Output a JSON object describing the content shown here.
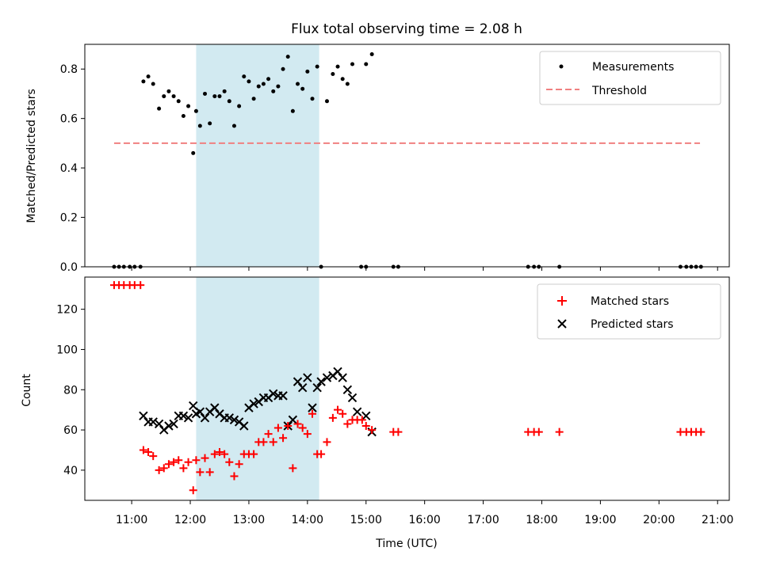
{
  "title": "Flux total observing time = 2.08 h",
  "colors": {
    "measurement": "#000000",
    "threshold": "#f08080",
    "matched": "#ff0000",
    "predicted": "#000000",
    "span": "#add8e6"
  },
  "chart_data": [
    {
      "type": "scatter",
      "ylabel": "Matched/Predicted stars",
      "ylim": [
        0,
        0.9
      ],
      "yticks": [
        0.0,
        0.2,
        0.4,
        0.6,
        0.8
      ],
      "ytick_labels": [
        "0.0",
        "0.2",
        "0.4",
        "0.6",
        "0.8"
      ],
      "xlim": [
        "10:12",
        "21:12"
      ],
      "shaded_span": [
        "12:06",
        "14:12"
      ],
      "legend": {
        "placement": "top-right",
        "entries": [
          "Measurements",
          "Threshold"
        ]
      },
      "threshold": {
        "name": "Threshold",
        "x": [
          "10:42",
          "20:42"
        ],
        "y": 0.5
      },
      "series": [
        {
          "name": "Measurements",
          "x": [
            "10:42",
            "10:47",
            "10:52",
            "10:58",
            "11:03",
            "11:09",
            "11:12",
            "11:17",
            "11:22",
            "11:28",
            "11:33",
            "11:38",
            "11:43",
            "11:48",
            "11:53",
            "11:58",
            "12:03",
            "12:06",
            "12:10",
            "12:15",
            "12:20",
            "12:25",
            "12:30",
            "12:35",
            "12:40",
            "12:45",
            "12:50",
            "12:55",
            "13:00",
            "13:05",
            "13:10",
            "13:15",
            "13:20",
            "13:25",
            "13:30",
            "13:35",
            "13:40",
            "13:45",
            "13:50",
            "13:55",
            "14:00",
            "14:05",
            "14:10",
            "14:14",
            "14:20",
            "14:26",
            "14:31",
            "14:36",
            "14:41",
            "14:46",
            "15:00",
            "15:06",
            "14:55",
            "15:00",
            "15:28",
            "15:33",
            "17:46",
            "17:52",
            "17:57",
            "18:18",
            "20:22",
            "20:28",
            "20:33",
            "20:38",
            "20:43"
          ],
          "y": [
            0,
            0,
            0,
            0,
            0,
            0,
            0.75,
            0.77,
            0.74,
            0.64,
            0.69,
            0.71,
            0.69,
            0.67,
            0.61,
            0.65,
            0.46,
            0.63,
            0.57,
            0.7,
            0.58,
            0.69,
            0.69,
            0.71,
            0.67,
            0.57,
            0.65,
            0.77,
            0.75,
            0.68,
            0.73,
            0.74,
            0.76,
            0.71,
            0.73,
            0.8,
            0.85,
            0.63,
            0.74,
            0.72,
            0.79,
            0.68,
            0.81,
            0,
            0.67,
            0.78,
            0.81,
            0.76,
            0.74,
            0.82,
            0.82,
            0.86,
            0,
            0,
            0,
            0,
            0,
            0,
            0,
            0,
            0,
            0,
            0,
            0,
            0
          ]
        }
      ]
    },
    {
      "type": "scatter",
      "xlabel": "Time (UTC)",
      "ylabel": "Count",
      "ylim": [
        25,
        136
      ],
      "yticks": [
        40,
        60,
        80,
        100,
        120
      ],
      "ytick_labels": [
        "40",
        "60",
        "80",
        "100",
        "120"
      ],
      "xlim": [
        "10:12",
        "21:12"
      ],
      "xticks": [
        "11:00",
        "12:00",
        "13:00",
        "14:00",
        "15:00",
        "16:00",
        "17:00",
        "18:00",
        "19:00",
        "20:00",
        "21:00"
      ],
      "shaded_span": [
        "12:06",
        "14:12"
      ],
      "legend": {
        "placement": "top-right",
        "entries": [
          "Matched stars",
          "Predicted stars"
        ]
      },
      "series": [
        {
          "name": "Matched stars",
          "x": [
            "10:42",
            "10:47",
            "10:52",
            "10:58",
            "11:03",
            "11:09",
            "11:12",
            "11:17",
            "11:22",
            "11:28",
            "11:33",
            "11:38",
            "11:43",
            "11:48",
            "11:53",
            "11:58",
            "12:03",
            "12:06",
            "12:10",
            "12:15",
            "12:20",
            "12:25",
            "12:30",
            "12:35",
            "12:40",
            "12:45",
            "12:50",
            "12:55",
            "13:00",
            "13:05",
            "13:10",
            "13:15",
            "13:20",
            "13:25",
            "13:30",
            "13:35",
            "13:40",
            "13:45",
            "13:50",
            "13:55",
            "14:00",
            "14:05",
            "14:10",
            "14:14",
            "14:20",
            "14:26",
            "14:31",
            "14:36",
            "14:41",
            "14:46",
            "14:51",
            "14:56",
            "15:00",
            "15:06",
            "15:28",
            "15:33",
            "17:46",
            "17:52",
            "17:57",
            "18:18",
            "20:22",
            "20:28",
            "20:33",
            "20:38",
            "20:43"
          ],
          "y": [
            132,
            132,
            132,
            132,
            132,
            132,
            50,
            49,
            47,
            40,
            41,
            43,
            44,
            45,
            41,
            44,
            30,
            45,
            39,
            46,
            39,
            48,
            49,
            48,
            44,
            37,
            43,
            48,
            48,
            48,
            54,
            54,
            58,
            54,
            61,
            56,
            62,
            41,
            63,
            61,
            58,
            68,
            48,
            48,
            54,
            66,
            70,
            68,
            63,
            65,
            65,
            65,
            62,
            60,
            59,
            59,
            59,
            59,
            59,
            59,
            59,
            59,
            59,
            59,
            59
          ]
        },
        {
          "name": "Predicted stars",
          "x": [
            "11:12",
            "11:17",
            "11:22",
            "11:28",
            "11:33",
            "11:38",
            "11:43",
            "11:48",
            "11:53",
            "11:58",
            "12:03",
            "12:06",
            "12:10",
            "12:15",
            "12:20",
            "12:25",
            "12:30",
            "12:35",
            "12:40",
            "12:45",
            "12:50",
            "12:55",
            "13:00",
            "13:05",
            "13:10",
            "13:15",
            "13:20",
            "13:25",
            "13:30",
            "13:35",
            "13:40",
            "13:45",
            "13:50",
            "13:55",
            "14:00",
            "14:05",
            "14:10",
            "14:14",
            "14:20",
            "14:26",
            "14:31",
            "14:36",
            "14:41",
            "14:46",
            "14:51",
            "15:00",
            "15:06"
          ],
          "y": [
            67,
            64,
            64,
            63,
            60,
            62,
            63,
            67,
            67,
            66,
            72,
            68,
            69,
            66,
            69,
            71,
            68,
            66,
            66,
            65,
            64,
            62,
            71,
            73,
            74,
            76,
            76,
            78,
            77,
            77,
            62,
            65,
            84,
            81,
            86,
            71,
            81,
            84,
            86,
            87,
            89,
            86,
            80,
            76,
            69,
            67,
            59
          ]
        }
      ]
    }
  ]
}
